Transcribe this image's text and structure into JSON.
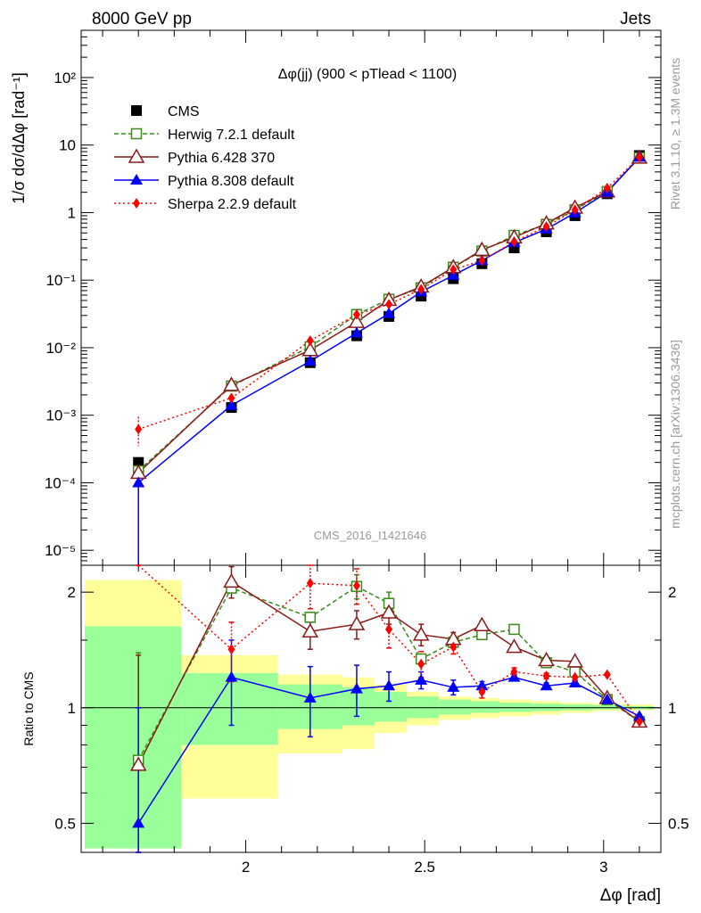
{
  "header": {
    "left_label": "8000 GeV pp",
    "right_label": "Jets"
  },
  "side_labels": {
    "rivet": "Rivet 3.1.10, ≥ 1.3M events",
    "mcplots": "mcplots.cern.ch [arXiv:1306.3436]"
  },
  "watermark": "CMS_2016_I1421646",
  "colors": {
    "cms": "#000000",
    "herwig": "#3a8a1a",
    "pythia6": "#8b1a1a",
    "pythia8": "#0000ff",
    "sherpa": "#ff0000",
    "band_inner": "#99ff99",
    "band_outer": "#ffff99"
  },
  "chart_data": [
    {
      "type": "line",
      "title": "Δφ(jj) (900 < pTlead < 1100)",
      "ylabel": "1/σ dσ/dΔφ [rad⁻¹]",
      "xlabel": "Δφ [rad]",
      "yscale": "log",
      "ylim": [
        6e-06,
        500
      ],
      "xlim": [
        1.54,
        3.16
      ],
      "y_ticks": [
        "10^-5",
        "10^-4",
        "10^-3",
        "10^-2",
        "10^-1",
        "1",
        "10",
        "10^2"
      ],
      "legend_position": "top-left",
      "x": [
        1.7,
        1.96,
        2.18,
        2.31,
        2.4,
        2.49,
        2.58,
        2.66,
        2.75,
        2.84,
        2.92,
        3.01,
        3.1
      ],
      "series": [
        {
          "name": "CMS",
          "key": "cms",
          "marker": "square-filled",
          "dash": "",
          "connect": false,
          "values": [
            0.0002,
            0.0013,
            0.006,
            0.015,
            0.029,
            0.058,
            0.105,
            0.175,
            0.3,
            0.52,
            0.9,
            1.9,
            7.0
          ]
        },
        {
          "name": "Herwig 7.2.1 default",
          "key": "herwig",
          "marker": "square-open",
          "dash": "5,3",
          "connect": true,
          "values": [
            0.00015,
            0.0027,
            0.0103,
            0.031,
            0.052,
            0.077,
            0.155,
            0.27,
            0.46,
            0.67,
            1.1,
            2.05,
            6.5
          ]
        },
        {
          "name": "Pythia 6.428 370",
          "key": "pythia6",
          "marker": "triangle-open",
          "dash": "",
          "connect": true,
          "values": [
            0.00014,
            0.0028,
            0.0092,
            0.024,
            0.051,
            0.08,
            0.155,
            0.28,
            0.43,
            0.69,
            1.18,
            2.05,
            6.5
          ]
        },
        {
          "name": "Pythia 8.308 default",
          "key": "pythia8",
          "marker": "triangle-filled",
          "dash": "",
          "connect": true,
          "values": [
            0.0001,
            0.0014,
            0.0063,
            0.0165,
            0.032,
            0.067,
            0.118,
            0.195,
            0.36,
            0.57,
            0.99,
            2.0,
            6.6
          ]
        },
        {
          "name": "Sherpa 2.2.9 default",
          "key": "sherpa",
          "marker": "diamond-filled",
          "dash": "2,3",
          "connect": true,
          "values": [
            0.00062,
            0.0018,
            0.0127,
            0.031,
            0.044,
            0.073,
            0.143,
            0.195,
            0.37,
            0.62,
            1.1,
            2.3,
            6.6
          ]
        }
      ]
    },
    {
      "type": "line",
      "ylabel": "Ratio to CMS",
      "xlabel": "Δφ [rad]",
      "yscale": "log",
      "ylim": [
        0.42,
        2.35
      ],
      "xlim": [
        1.54,
        3.16
      ],
      "x_ticks": [
        2,
        2.5,
        3
      ],
      "y_ticks": [
        0.5,
        1,
        2
      ],
      "reference_line": 1,
      "bands": [
        {
          "x0": 1.55,
          "x1": 1.82,
          "inner": [
            0.43,
            1.63
          ],
          "outer": [
            0.43,
            2.15
          ]
        },
        {
          "x0": 1.82,
          "x1": 2.09,
          "inner": [
            0.8,
            1.23
          ],
          "outer": [
            0.58,
            1.37
          ]
        },
        {
          "x0": 2.09,
          "x1": 2.27,
          "inner": [
            0.88,
            1.15
          ],
          "outer": [
            0.76,
            1.22
          ]
        },
        {
          "x0": 2.27,
          "x1": 2.36,
          "inner": [
            0.9,
            1.13
          ],
          "outer": [
            0.78,
            1.2
          ]
        },
        {
          "x0": 2.36,
          "x1": 2.45,
          "inner": [
            0.92,
            1.1
          ],
          "outer": [
            0.86,
            1.15
          ]
        },
        {
          "x0": 2.45,
          "x1": 2.54,
          "inner": [
            0.94,
            1.07
          ],
          "outer": [
            0.9,
            1.1
          ]
        },
        {
          "x0": 2.54,
          "x1": 2.63,
          "inner": [
            0.96,
            1.05
          ],
          "outer": [
            0.93,
            1.07
          ]
        },
        {
          "x0": 2.63,
          "x1": 2.71,
          "inner": [
            0.97,
            1.04
          ],
          "outer": [
            0.94,
            1.06
          ]
        },
        {
          "x0": 2.71,
          "x1": 2.8,
          "inner": [
            0.975,
            1.03
          ],
          "outer": [
            0.95,
            1.05
          ]
        },
        {
          "x0": 2.8,
          "x1": 2.88,
          "inner": [
            0.98,
            1.025
          ],
          "outer": [
            0.96,
            1.04
          ]
        },
        {
          "x0": 2.88,
          "x1": 2.97,
          "inner": [
            0.985,
            1.02
          ],
          "outer": [
            0.97,
            1.03
          ]
        },
        {
          "x0": 2.97,
          "x1": 3.06,
          "inner": [
            0.99,
            1.015
          ],
          "outer": [
            0.98,
            1.025
          ]
        },
        {
          "x0": 3.06,
          "x1": 3.14,
          "inner": [
            0.99,
            1.01
          ],
          "outer": [
            0.985,
            1.02
          ]
        }
      ],
      "x": [
        1.7,
        1.96,
        2.18,
        2.31,
        2.4,
        2.49,
        2.58,
        2.66,
        2.75,
        2.84,
        2.92,
        3.01,
        3.1
      ],
      "series": [
        {
          "name": "Herwig 7.2.1 default",
          "key": "herwig",
          "values": [
            0.73,
            2.05,
            1.72,
            2.07,
            1.87,
            1.34,
            1.48,
            1.55,
            1.6,
            1.31,
            1.24,
            1.05,
            0.92
          ],
          "err": [
            0.66,
            0.02,
            0.05,
            0.15,
            0.13,
            0.03,
            0.03,
            0.02,
            0.02,
            0.01,
            0.01,
            0.01,
            0.01
          ]
        },
        {
          "name": "Pythia 6.428 370",
          "key": "pythia6",
          "values": [
            0.71,
            2.13,
            1.58,
            1.65,
            1.77,
            1.55,
            1.51,
            1.64,
            1.44,
            1.33,
            1.32,
            1.06,
            0.92
          ],
          "err": [
            0.66,
            0.2,
            0.16,
            0.14,
            0.12,
            0.1,
            0.06,
            0.04,
            0.03,
            0.02,
            0.02,
            0.01,
            0.01
          ]
        },
        {
          "name": "Pythia 8.308 default",
          "key": "pythia8",
          "values": [
            0.5,
            1.2,
            1.06,
            1.12,
            1.14,
            1.18,
            1.13,
            1.14,
            1.2,
            1.14,
            1.16,
            1.05,
            0.95
          ],
          "err": [
            0.5,
            0.3,
            0.22,
            0.17,
            0.1,
            0.06,
            0.05,
            0.03,
            0.02,
            0.02,
            0.02,
            0.01,
            0.01
          ]
        },
        {
          "name": "Sherpa 2.2.9 default",
          "key": "sherpa",
          "values": [
            3.1,
            1.42,
            2.11,
            2.08,
            1.6,
            1.3,
            1.44,
            1.1,
            1.24,
            1.21,
            1.2,
            1.22,
            0.92
          ],
          "err": [
            0.4,
            0.25,
            0.3,
            0.22,
            0.17,
            0.1,
            0.06,
            0.04,
            0.03,
            0.02,
            0.02,
            0.01,
            0.01
          ]
        }
      ]
    }
  ]
}
